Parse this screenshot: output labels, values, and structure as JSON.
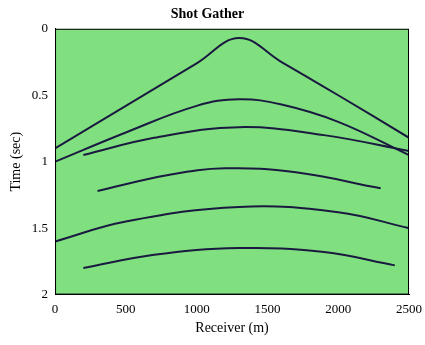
{
  "chart_data": {
    "type": "line",
    "title": "Shot Gather",
    "x_label": "Receiver (m)",
    "y_label": "Time (sec)",
    "xlim": [
      0,
      2500
    ],
    "xticks": [
      0,
      500,
      1000,
      1500,
      2000,
      2500
    ],
    "ylim": [
      0,
      2
    ],
    "yticks": [
      0,
      0.5,
      1,
      1.5,
      2
    ],
    "grid": false,
    "background_color": "#80e080",
    "series": [
      {
        "color": "#1a1a40",
        "x": [
          0,
          500,
          1000,
          1300,
          1600,
          2000,
          2500
        ],
        "values": [
          0.9,
          0.58,
          0.26,
          0.07,
          0.25,
          0.5,
          0.82
        ]
      },
      {
        "color": "#1a1a40",
        "x": [
          0,
          500,
          1000,
          1300,
          1600,
          2000,
          2500
        ],
        "values": [
          1.0,
          0.78,
          0.58,
          0.53,
          0.57,
          0.7,
          0.95
        ]
      },
      {
        "color": "#1a1a40",
        "x": [
          200,
          700,
          1300,
          1900,
          2500
        ],
        "values": [
          0.95,
          0.82,
          0.74,
          0.8,
          0.92
        ]
      },
      {
        "color": "#1a1a40",
        "x": [
          300,
          800,
          1200,
          1700,
          2300
        ],
        "values": [
          1.22,
          1.1,
          1.05,
          1.08,
          1.2
        ]
      },
      {
        "color": "#1a1a40",
        "x": [
          0,
          500,
          1300,
          2000,
          2500
        ],
        "values": [
          1.6,
          1.45,
          1.34,
          1.38,
          1.5
        ]
      },
      {
        "color": "#1a1a40",
        "x": [
          200,
          700,
          1300,
          1900,
          2400
        ],
        "values": [
          1.8,
          1.7,
          1.65,
          1.68,
          1.78
        ]
      }
    ]
  }
}
